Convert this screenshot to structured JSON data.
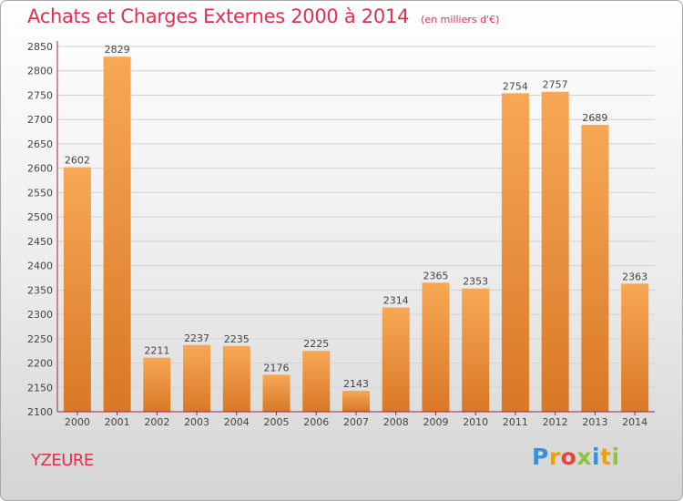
{
  "colors": {
    "title": "#e0304e",
    "bar_light": "#f7a855",
    "bar_dark": "#d97826",
    "grid": "#d2d2d2",
    "axis": "#a32042"
  },
  "chart_data": {
    "type": "bar",
    "title": "Achats et Charges Externes 2000 à 2014",
    "subtitle": "(en milliers d'€)",
    "xlabel": "",
    "ylabel": "",
    "categories": [
      "2000",
      "2001",
      "2002",
      "2003",
      "2004",
      "2005",
      "2006",
      "2007",
      "2008",
      "2009",
      "2010",
      "2011",
      "2012",
      "2013",
      "2014"
    ],
    "values": [
      2602,
      2829,
      2211,
      2237,
      2235,
      2176,
      2225,
      2143,
      2314,
      2365,
      2353,
      2754,
      2757,
      2689,
      2363
    ],
    "ylim": [
      2100,
      2850
    ],
    "yticks": [
      2100,
      2150,
      2200,
      2250,
      2300,
      2350,
      2400,
      2450,
      2500,
      2550,
      2600,
      2650,
      2700,
      2750,
      2800,
      2850
    ],
    "grid": true,
    "data_labels": true,
    "legend": "none"
  },
  "footer": {
    "city": "YZEURE",
    "logo_letters": [
      {
        "ch": "P",
        "color": "#3a8fd6"
      },
      {
        "ch": "r",
        "color": "#f0a000"
      },
      {
        "ch": "o",
        "color": "#e8463c"
      },
      {
        "ch": "x",
        "color": "#8cc63e"
      },
      {
        "ch": "i",
        "color": "#3a8fd6"
      },
      {
        "ch": "t",
        "color": "#f0a000"
      },
      {
        "ch": "i",
        "color": "#8cc63e"
      }
    ]
  }
}
